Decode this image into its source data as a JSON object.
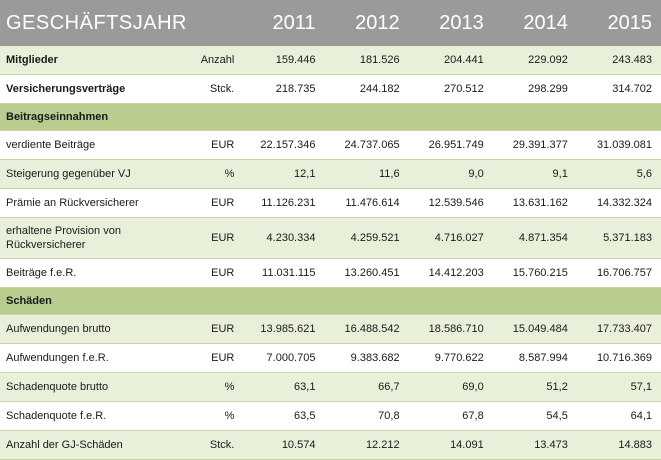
{
  "header": {
    "title": "GESCHÄFTSJAHR",
    "years": [
      "2011",
      "2012",
      "2013",
      "2014",
      "2015"
    ]
  },
  "rows": [
    {
      "label": "Mitglieder",
      "unit": "Anzahl",
      "values": [
        "159.446",
        "181.526",
        "204.441",
        "229.092",
        "243.483"
      ]
    },
    {
      "label": "Versicherungsverträge",
      "unit": "Stck.",
      "values": [
        "218.735",
        "244.182",
        "270.512",
        "298.299",
        "314.702"
      ]
    },
    {
      "section": "Beitragseinnahmen"
    },
    {
      "label": "verdiente Beiträge",
      "unit": "EUR",
      "values": [
        "22.157.346",
        "24.737.065",
        "26.951.749",
        "29.391.377",
        "31.039.081"
      ]
    },
    {
      "label": "Steigerung gegenüber VJ",
      "unit": "%",
      "values": [
        "12,1",
        "11,6",
        "9,0",
        "9,1",
        "5,6"
      ]
    },
    {
      "label": "Prämie an Rückversicherer",
      "unit": "EUR",
      "values": [
        "11.126.231",
        "11.476.614",
        "12.539.546",
        "13.631.162",
        "14.332.324"
      ]
    },
    {
      "label": "erhaltene Provision von Rückversicherer",
      "unit": "EUR",
      "values": [
        "4.230.334",
        "4.259.521",
        "4.716.027",
        "4.871.354",
        "5.371.183"
      ]
    },
    {
      "label": "Beiträge f.e.R.",
      "unit": "EUR",
      "values": [
        "11.031.115",
        "13.260.451",
        "14.412.203",
        "15.760.215",
        "16.706.757"
      ]
    },
    {
      "section": "Schäden"
    },
    {
      "label": "Aufwendungen brutto",
      "unit": "EUR",
      "values": [
        "13.985.621",
        "16.488.542",
        "18.586.710",
        "15.049.484",
        "17.733.407"
      ]
    },
    {
      "label": "Aufwendungen f.e.R.",
      "unit": "EUR",
      "values": [
        "7.000.705",
        "9.383.682",
        "9.770.622",
        "8.587.994",
        "10.716.369"
      ]
    },
    {
      "label": "Schadenquote brutto",
      "unit": "%",
      "values": [
        "63,1",
        "66,7",
        "69,0",
        "51,2",
        "57,1"
      ]
    },
    {
      "label": "Schadenquote f.e.R.",
      "unit": "%",
      "values": [
        "63,5",
        "70,8",
        "67,8",
        "54,5",
        "64,1"
      ]
    },
    {
      "label": "Anzahl der GJ-Schäden",
      "unit": "Stck.",
      "values": [
        "10.574",
        "12.212",
        "14.091",
        "13.473",
        "14.883"
      ]
    }
  ]
}
